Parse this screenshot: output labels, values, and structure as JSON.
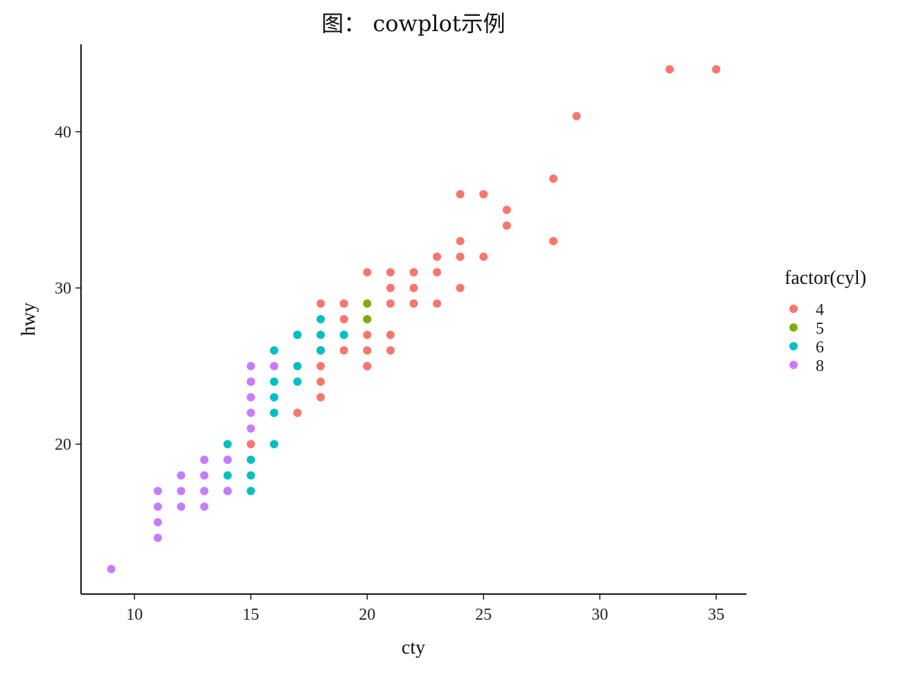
{
  "chart_data": {
    "type": "scatter",
    "title": "图： cowplot示例",
    "xlabel": "cty",
    "ylabel": "hwy",
    "xlim": [
      7.7,
      36.3
    ],
    "ylim": [
      10.4,
      45.6
    ],
    "x_ticks": [
      10,
      15,
      20,
      25,
      30,
      35
    ],
    "y_ticks": [
      20,
      30,
      40
    ],
    "legend": {
      "title": "factor(cyl)",
      "placement": "right"
    },
    "series": [
      {
        "name": "4",
        "color": "#F8766D",
        "points": [
          [
            18,
            29
          ],
          [
            21,
            29
          ],
          [
            20,
            31
          ],
          [
            21,
            30
          ],
          [
            18,
            26
          ],
          [
            18,
            26
          ],
          [
            19,
            29
          ],
          [
            22,
            29
          ],
          [
            19,
            29
          ],
          [
            19,
            26
          ],
          [
            18,
            25
          ],
          [
            17,
            22
          ],
          [
            18,
            24
          ],
          [
            15,
            20
          ],
          [
            18,
            23
          ],
          [
            20,
            27
          ],
          [
            20,
            26
          ],
          [
            20,
            25
          ],
          [
            21,
            27
          ],
          [
            21,
            26
          ],
          [
            24,
            30
          ],
          [
            24,
            33
          ],
          [
            23,
            32
          ],
          [
            23,
            29
          ],
          [
            23,
            31
          ],
          [
            22,
            30
          ],
          [
            22,
            31
          ],
          [
            21,
            31
          ],
          [
            24,
            32
          ],
          [
            24,
            36
          ],
          [
            25,
            36
          ],
          [
            26,
            35
          ],
          [
            26,
            34
          ],
          [
            28,
            37
          ],
          [
            29,
            41
          ],
          [
            28,
            33
          ],
          [
            33,
            44
          ],
          [
            35,
            44
          ],
          [
            25,
            32
          ],
          [
            19,
            28
          ],
          [
            19,
            27
          ],
          [
            20,
            25
          ]
        ]
      },
      {
        "name": "5",
        "color": "#7CAE00",
        "points": [
          [
            20,
            28
          ],
          [
            20,
            29
          ]
        ]
      },
      {
        "name": "6",
        "color": "#00BFC4",
        "points": [
          [
            16,
            26
          ],
          [
            16,
            24
          ],
          [
            17,
            27
          ],
          [
            17,
            25
          ],
          [
            17,
            24
          ],
          [
            18,
            28
          ],
          [
            18,
            27
          ],
          [
            18,
            26
          ],
          [
            19,
            27
          ],
          [
            16,
            23
          ],
          [
            16,
            22
          ],
          [
            16,
            20
          ],
          [
            15,
            19
          ],
          [
            15,
            18
          ],
          [
            15,
            17
          ],
          [
            14,
            20
          ],
          [
            14,
            18
          ],
          [
            14,
            17
          ],
          [
            17,
            27
          ],
          [
            18,
            26
          ]
        ]
      },
      {
        "name": "8",
        "color": "#C77CFF",
        "points": [
          [
            15,
            25
          ],
          [
            15,
            24
          ],
          [
            15,
            23
          ],
          [
            15,
            22
          ],
          [
            15,
            21
          ],
          [
            16,
            25
          ],
          [
            14,
            19
          ],
          [
            14,
            17
          ],
          [
            13,
            19
          ],
          [
            13,
            18
          ],
          [
            13,
            17
          ],
          [
            13,
            16
          ],
          [
            12,
            18
          ],
          [
            12,
            17
          ],
          [
            12,
            16
          ],
          [
            11,
            17
          ],
          [
            11,
            16
          ],
          [
            11,
            15
          ],
          [
            11,
            14
          ],
          [
            9,
            12
          ],
          [
            14,
            19
          ],
          [
            15,
            24
          ]
        ]
      }
    ]
  }
}
